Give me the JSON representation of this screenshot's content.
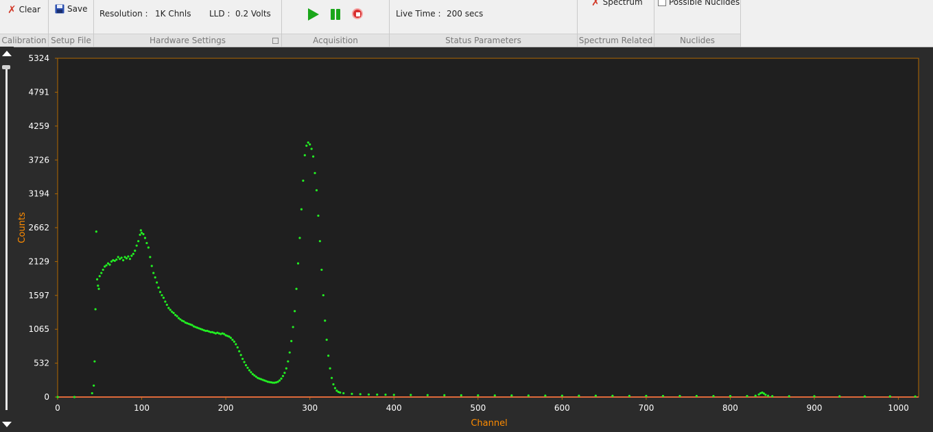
{
  "ribbon": {
    "calibration": {
      "clear_label": "Clear",
      "footer": "Calibration"
    },
    "setup_file": {
      "save_label": "Save",
      "footer": "Setup File"
    },
    "hardware": {
      "resolution_label": "Resolution :",
      "resolution_value": "1K Chnls",
      "lld_label": "LLD :",
      "lld_value": "0.2 Volts",
      "footer": "Hardware Settings"
    },
    "acquisition": {
      "footer": "Acquisition",
      "play_icon": "play-icon",
      "pause_icon": "pause-icon",
      "stop_icon": "stop-icon"
    },
    "status": {
      "live_time_label": "Live Time :",
      "live_time_value": "200 secs",
      "footer": "Status Parameters"
    },
    "spectrum": {
      "clear_spectrum_label": "Spectrum",
      "footer": "Spectrum Related"
    },
    "nuclides": {
      "possible_label": "Possible Nuclides",
      "checked": false,
      "footer": "Nuclides"
    }
  },
  "colors": {
    "plot_bg": "#1f1f1f",
    "frame": "#b36a00",
    "axis_label": "#ff8c00",
    "points": "#22ee22",
    "tick_text": "#ffffff",
    "baseline": "#e06a3a"
  },
  "chart_data": {
    "type": "scatter",
    "xlabel": "Channel",
    "ylabel": "Counts",
    "xlim": [
      0,
      1024
    ],
    "ylim": [
      0,
      5324
    ],
    "x_ticks": [
      0,
      100,
      200,
      300,
      400,
      500,
      600,
      700,
      800,
      900,
      1000
    ],
    "y_ticks": [
      0,
      532,
      1065,
      1597,
      2129,
      2662,
      3194,
      3726,
      4259,
      4791,
      5324
    ],
    "series": [
      {
        "points": [
          [
            0,
            0
          ],
          [
            20,
            0
          ],
          [
            41,
            60
          ],
          [
            43,
            180
          ],
          [
            44,
            560
          ],
          [
            45,
            1380
          ],
          [
            46,
            2600
          ],
          [
            47,
            1850
          ],
          [
            48,
            1750
          ],
          [
            49,
            1700
          ],
          [
            50,
            1900
          ],
          [
            52,
            1950
          ],
          [
            54,
            2000
          ],
          [
            56,
            2050
          ],
          [
            58,
            2070
          ],
          [
            60,
            2100
          ],
          [
            62,
            2080
          ],
          [
            64,
            2130
          ],
          [
            66,
            2150
          ],
          [
            68,
            2140
          ],
          [
            70,
            2160
          ],
          [
            72,
            2200
          ],
          [
            74,
            2170
          ],
          [
            76,
            2190
          ],
          [
            78,
            2150
          ],
          [
            80,
            2200
          ],
          [
            82,
            2180
          ],
          [
            84,
            2210
          ],
          [
            86,
            2170
          ],
          [
            88,
            2220
          ],
          [
            90,
            2250
          ],
          [
            92,
            2300
          ],
          [
            94,
            2380
          ],
          [
            96,
            2450
          ],
          [
            98,
            2550
          ],
          [
            99,
            2620
          ],
          [
            100,
            2580
          ],
          [
            102,
            2560
          ],
          [
            104,
            2500
          ],
          [
            106,
            2420
          ],
          [
            108,
            2350
          ],
          [
            110,
            2200
          ],
          [
            112,
            2060
          ],
          [
            114,
            1950
          ],
          [
            116,
            1880
          ],
          [
            118,
            1800
          ],
          [
            120,
            1720
          ],
          [
            122,
            1650
          ],
          [
            124,
            1600
          ],
          [
            126,
            1560
          ],
          [
            128,
            1500
          ],
          [
            130,
            1450
          ],
          [
            132,
            1400
          ],
          [
            134,
            1370
          ],
          [
            136,
            1340
          ],
          [
            138,
            1320
          ],
          [
            140,
            1290
          ],
          [
            142,
            1270
          ],
          [
            144,
            1240
          ],
          [
            146,
            1220
          ],
          [
            148,
            1200
          ],
          [
            150,
            1190
          ],
          [
            152,
            1170
          ],
          [
            154,
            1160
          ],
          [
            156,
            1150
          ],
          [
            158,
            1140
          ],
          [
            160,
            1130
          ],
          [
            162,
            1110
          ],
          [
            164,
            1100
          ],
          [
            166,
            1090
          ],
          [
            168,
            1080
          ],
          [
            170,
            1070
          ],
          [
            172,
            1060
          ],
          [
            174,
            1050
          ],
          [
            176,
            1040
          ],
          [
            178,
            1040
          ],
          [
            180,
            1030
          ],
          [
            182,
            1020
          ],
          [
            184,
            1020
          ],
          [
            186,
            1010
          ],
          [
            188,
            1000
          ],
          [
            190,
            1010
          ],
          [
            192,
            1000
          ],
          [
            194,
            990
          ],
          [
            196,
            1000
          ],
          [
            198,
            990
          ],
          [
            200,
            970
          ],
          [
            202,
            960
          ],
          [
            204,
            950
          ],
          [
            206,
            930
          ],
          [
            208,
            900
          ],
          [
            210,
            870
          ],
          [
            212,
            830
          ],
          [
            214,
            780
          ],
          [
            216,
            720
          ],
          [
            218,
            660
          ],
          [
            220,
            600
          ],
          [
            222,
            550
          ],
          [
            224,
            500
          ],
          [
            226,
            460
          ],
          [
            228,
            420
          ],
          [
            230,
            390
          ],
          [
            232,
            360
          ],
          [
            234,
            340
          ],
          [
            236,
            320
          ],
          [
            238,
            300
          ],
          [
            240,
            290
          ],
          [
            242,
            280
          ],
          [
            244,
            270
          ],
          [
            246,
            260
          ],
          [
            248,
            250
          ],
          [
            250,
            240
          ],
          [
            252,
            235
          ],
          [
            254,
            230
          ],
          [
            256,
            225
          ],
          [
            258,
            225
          ],
          [
            260,
            230
          ],
          [
            262,
            240
          ],
          [
            264,
            260
          ],
          [
            266,
            290
          ],
          [
            268,
            330
          ],
          [
            270,
            380
          ],
          [
            272,
            450
          ],
          [
            274,
            560
          ],
          [
            276,
            700
          ],
          [
            278,
            880
          ],
          [
            280,
            1100
          ],
          [
            282,
            1350
          ],
          [
            284,
            1700
          ],
          [
            286,
            2100
          ],
          [
            288,
            2500
          ],
          [
            290,
            2950
          ],
          [
            292,
            3400
          ],
          [
            294,
            3800
          ],
          [
            296,
            3950
          ],
          [
            298,
            4000
          ],
          [
            300,
            3970
          ],
          [
            302,
            3900
          ],
          [
            304,
            3780
          ],
          [
            306,
            3520
          ],
          [
            308,
            3250
          ],
          [
            310,
            2850
          ],
          [
            312,
            2450
          ],
          [
            314,
            2000
          ],
          [
            316,
            1600
          ],
          [
            318,
            1200
          ],
          [
            320,
            900
          ],
          [
            322,
            650
          ],
          [
            324,
            450
          ],
          [
            326,
            300
          ],
          [
            328,
            200
          ],
          [
            330,
            140
          ],
          [
            332,
            100
          ],
          [
            334,
            80
          ],
          [
            336,
            70
          ],
          [
            340,
            60
          ],
          [
            350,
            50
          ],
          [
            360,
            45
          ],
          [
            370,
            40
          ],
          [
            380,
            38
          ],
          [
            390,
            36
          ],
          [
            400,
            34
          ],
          [
            420,
            32
          ],
          [
            440,
            30
          ],
          [
            460,
            28
          ],
          [
            480,
            27
          ],
          [
            500,
            26
          ],
          [
            520,
            25
          ],
          [
            540,
            24
          ],
          [
            560,
            23
          ],
          [
            580,
            22
          ],
          [
            600,
            21
          ],
          [
            620,
            20
          ],
          [
            640,
            20
          ],
          [
            660,
            19
          ],
          [
            680,
            18
          ],
          [
            700,
            18
          ],
          [
            720,
            17
          ],
          [
            740,
            16
          ],
          [
            760,
            16
          ],
          [
            780,
            15
          ],
          [
            800,
            15
          ],
          [
            820,
            15
          ],
          [
            830,
            20
          ],
          [
            834,
            40
          ],
          [
            836,
            60
          ],
          [
            838,
            70
          ],
          [
            840,
            55
          ],
          [
            842,
            35
          ],
          [
            845,
            20
          ],
          [
            850,
            14
          ],
          [
            870,
            13
          ],
          [
            900,
            12
          ],
          [
            930,
            11
          ],
          [
            960,
            10
          ],
          [
            990,
            10
          ],
          [
            1020,
            9
          ]
        ]
      }
    ]
  }
}
